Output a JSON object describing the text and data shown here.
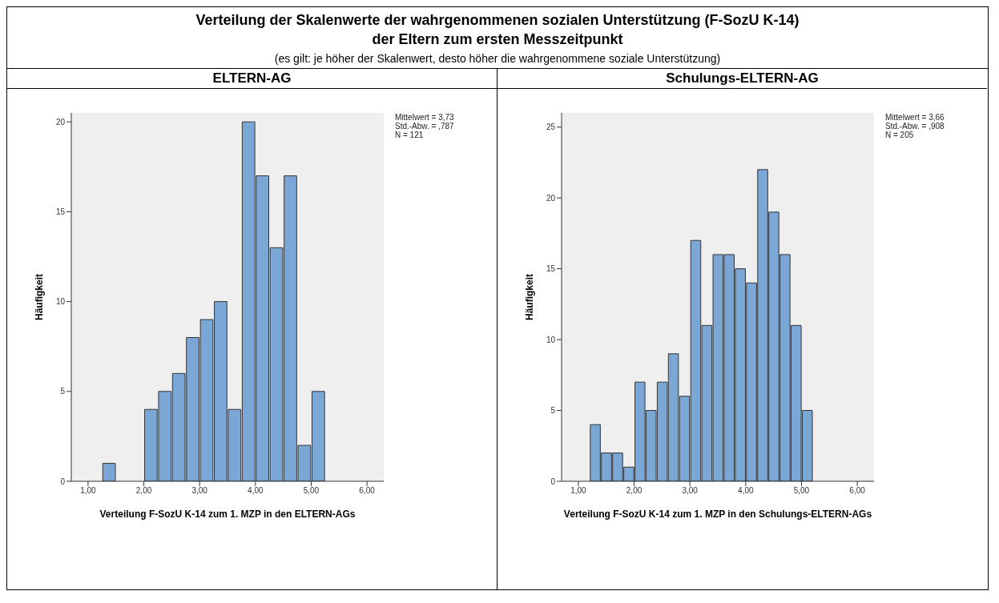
{
  "chart_data": [
    {
      "type": "other",
      "title": "Verteilung der Skalenwerte der wahrgenommenen sozialen Unterstützung (F-SozU K-14)\nder Eltern zum ersten Messzeitpunkt",
      "subtitle": "(es gilt: je höher der Skalenwert, desto höher die wahrgenommene soziale Unterstützung)"
    },
    {
      "type": "histogram",
      "title": "ELTERN-AG",
      "xlabel": "Verteilung F-SozU K-14 zum 1. MZP in den ELTERN-AGs",
      "ylabel": "Häufigkeit",
      "color": "#7ba7d6",
      "bins": [
        1.25,
        1.5,
        1.75,
        2.0,
        2.25,
        2.5,
        2.75,
        3.0,
        3.25,
        3.5,
        3.75,
        4.0,
        4.25,
        4.5,
        4.75,
        5.0,
        5.25
      ],
      "values": [
        1,
        0,
        0,
        4,
        5,
        6,
        8,
        9,
        10,
        4,
        20,
        17,
        13,
        17,
        2,
        5
      ],
      "xlim": [
        0.7,
        6.3
      ],
      "xticks": [
        {
          "value": 1,
          "label": "1,00"
        },
        {
          "value": 2,
          "label": "2,00"
        },
        {
          "value": 3,
          "label": "3,00"
        },
        {
          "value": 4,
          "label": "4,00"
        },
        {
          "value": 5,
          "label": "5,00"
        },
        {
          "value": 6,
          "label": "6,00"
        }
      ],
      "ylim": [
        0,
        20.5
      ],
      "yticks": [
        0,
        5,
        10,
        15,
        20
      ],
      "annotations": [
        "Mittelwert = 3,73",
        "Std.-Abw. = ,787",
        "N = 121"
      ]
    },
    {
      "type": "histogram",
      "title": "Schulungs-ELTERN-AG",
      "xlabel": "Verteilung F-SozU K-14 zum 1. MZP in den Schulungs-ELTERN-AGs",
      "ylabel": "Häufigkeit",
      "color": "#7ba7d6",
      "bins": [
        1.2,
        1.4,
        1.6,
        1.8,
        2.0,
        2.2,
        2.4,
        2.6,
        2.8,
        3.0,
        3.2,
        3.4,
        3.6,
        3.8,
        4.0,
        4.2,
        4.4,
        4.6,
        4.8,
        5.0,
        5.2
      ],
      "values": [
        4,
        2,
        2,
        1,
        7,
        5,
        7,
        9,
        6,
        17,
        11,
        16,
        16,
        15,
        14,
        22,
        19,
        16,
        11,
        5
      ],
      "xlim": [
        0.7,
        6.3
      ],
      "xticks": [
        {
          "value": 1,
          "label": "1,00"
        },
        {
          "value": 2,
          "label": "2,00"
        },
        {
          "value": 3,
          "label": "3,00"
        },
        {
          "value": 4,
          "label": "4,00"
        },
        {
          "value": 5,
          "label": "5,00"
        },
        {
          "value": 6,
          "label": "6,00"
        }
      ],
      "ylim": [
        0,
        26
      ],
      "yticks": [
        0,
        5,
        10,
        15,
        20,
        25
      ],
      "annotations": [
        "Mittelwert = 3,66",
        "Std.-Abw. = ,908",
        "N = 205"
      ]
    }
  ]
}
